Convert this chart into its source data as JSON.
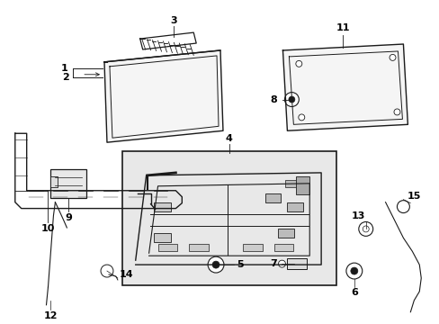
{
  "bg_color": "#ffffff",
  "line_color": "#1a1a1a",
  "label_color": "#000000",
  "inset_fill": "#e8e8e8",
  "font_size": 8.0
}
